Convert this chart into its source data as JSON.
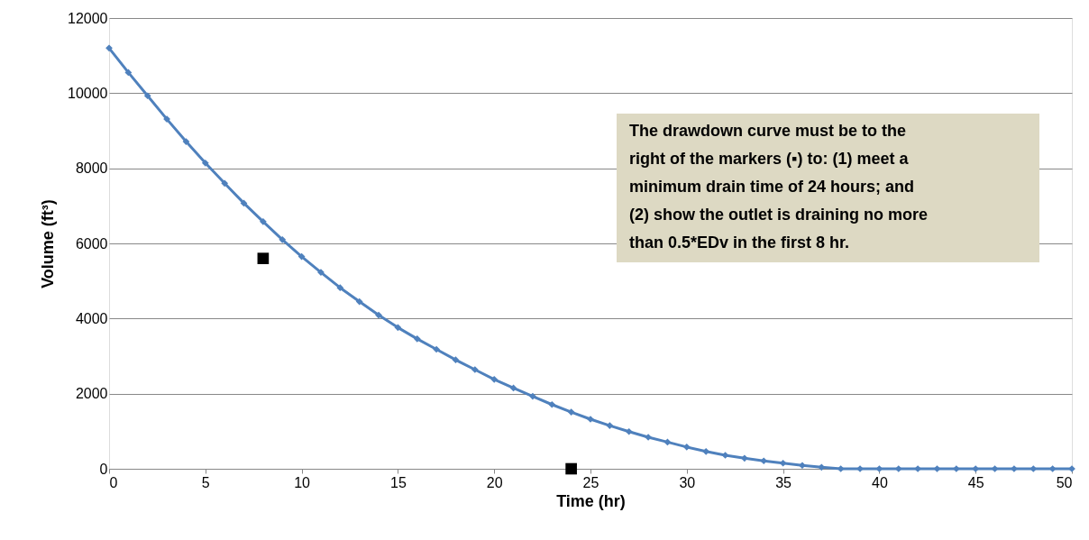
{
  "chart_data": {
    "type": "line",
    "xlabel": "Time (hr)",
    "ylabel": "Volume (ft³)",
    "xlim": [
      0,
      50
    ],
    "xticks": [
      0,
      5,
      10,
      15,
      20,
      25,
      30,
      35,
      40,
      45,
      50
    ],
    "ylim": [
      0,
      12000
    ],
    "yticks": [
      0,
      2000,
      4000,
      6000,
      8000,
      10000,
      12000
    ],
    "grid": "y",
    "line_style": "solid",
    "series": [
      {
        "marker": "diamond",
        "color": "#4f81bd",
        "x": [
          0,
          1,
          2,
          3,
          4,
          5,
          6,
          7,
          8,
          9,
          10,
          11,
          12,
          13,
          14,
          15,
          16,
          17,
          18,
          19,
          20,
          21,
          22,
          23,
          24,
          25,
          26,
          27,
          28,
          29,
          30,
          31,
          32,
          33,
          34,
          35,
          36,
          37,
          38,
          39,
          40,
          41,
          42,
          43,
          44,
          45,
          46,
          47,
          48,
          49,
          50
        ],
        "values": [
          11200,
          10550,
          9930,
          9310,
          8710,
          8140,
          7600,
          7070,
          6580,
          6100,
          5650,
          5230,
          4820,
          4450,
          4090,
          3760,
          3460,
          3180,
          2900,
          2640,
          2380,
          2150,
          1930,
          1710,
          1510,
          1320,
          1150,
          990,
          840,
          710,
          580,
          460,
          360,
          280,
          210,
          150,
          90,
          40,
          0,
          0,
          0,
          0,
          0,
          0,
          0,
          0,
          0,
          0,
          0,
          0,
          0
        ]
      },
      {
        "type": "scatter",
        "marker": "square",
        "color": "#000000",
        "x": [
          8,
          24
        ],
        "values": [
          5600,
          0
        ]
      }
    ],
    "annotations": [
      "The drawdown curve must be to the\nright of the markers (▪) to:  (1) meet a\nminimum drain time of 24 hours; and\n(2) show the outlet is draining no more\nthan 0.5*EDv in the first 8 hr."
    ]
  }
}
